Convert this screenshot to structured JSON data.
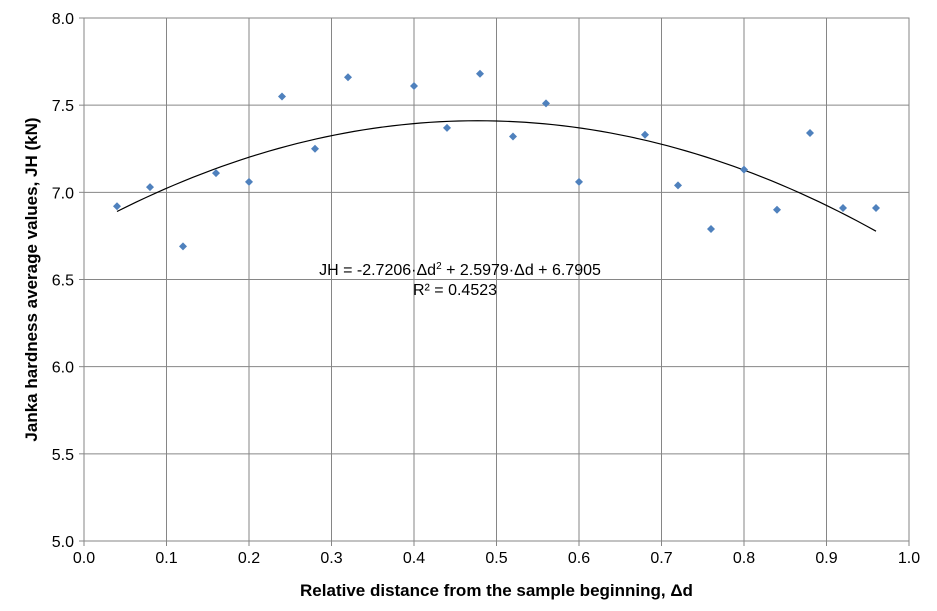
{
  "chart_data": {
    "type": "scatter",
    "title": "",
    "xlabel": "Relative distance from the sample beginning, Δd",
    "ylabel": "Janka hardness average values, JH (kN)",
    "xlim": [
      0.0,
      1.0
    ],
    "ylim": [
      5.0,
      8.0
    ],
    "x_ticks": [
      "0.0",
      "0.1",
      "0.2",
      "0.3",
      "0.4",
      "0.5",
      "0.6",
      "0.7",
      "0.8",
      "0.9",
      "1.0"
    ],
    "y_ticks": [
      "5.0",
      "5.5",
      "6.0",
      "6.5",
      "7.0",
      "7.5",
      "8.0"
    ],
    "grid": true,
    "legend": "none",
    "marker_color": "#4F81BD",
    "series": [
      {
        "points": [
          {
            "x": 0.04,
            "y": 6.92
          },
          {
            "x": 0.08,
            "y": 7.03
          },
          {
            "x": 0.12,
            "y": 6.69
          },
          {
            "x": 0.16,
            "y": 7.11
          },
          {
            "x": 0.2,
            "y": 7.06
          },
          {
            "x": 0.24,
            "y": 7.55
          },
          {
            "x": 0.28,
            "y": 7.25
          },
          {
            "x": 0.32,
            "y": 7.66
          },
          {
            "x": 0.4,
            "y": 7.61
          },
          {
            "x": 0.44,
            "y": 7.37
          },
          {
            "x": 0.48,
            "y": 7.68
          },
          {
            "x": 0.52,
            "y": 7.32
          },
          {
            "x": 0.56,
            "y": 7.51
          },
          {
            "x": 0.6,
            "y": 7.06
          },
          {
            "x": 0.68,
            "y": 7.33
          },
          {
            "x": 0.72,
            "y": 7.04
          },
          {
            "x": 0.76,
            "y": 6.79
          },
          {
            "x": 0.8,
            "y": 7.13
          },
          {
            "x": 0.84,
            "y": 6.9
          },
          {
            "x": 0.88,
            "y": 7.34
          },
          {
            "x": 0.92,
            "y": 6.91
          },
          {
            "x": 0.96,
            "y": 6.91
          }
        ]
      }
    ],
    "trendline": {
      "type": "polynomial",
      "coefficients": [
        -2.7206,
        2.5979,
        6.7905
      ],
      "x_range": [
        0.04,
        0.96
      ],
      "color": "#000000"
    },
    "annotations": {
      "equation_prefix": "JH = -2.7206·Δd",
      "equation_exp": "2",
      "equation_suffix": " + 2.5979·Δd + 6.7905",
      "r_squared": "R² = 0.4523"
    }
  }
}
